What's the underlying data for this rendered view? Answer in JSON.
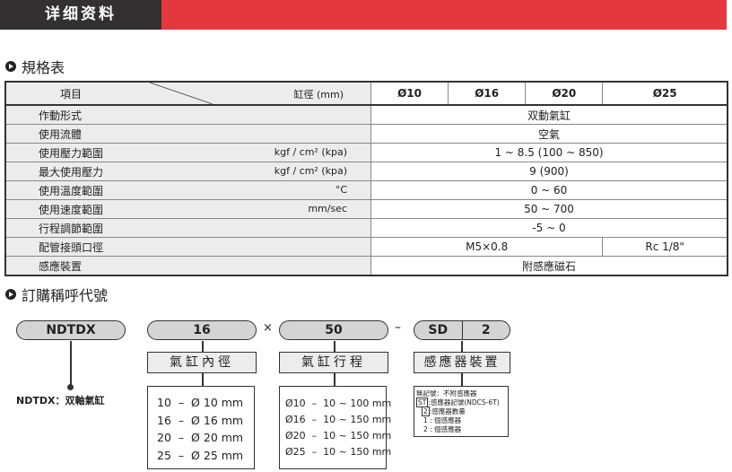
{
  "header": {
    "title": "详细资料"
  },
  "spec": {
    "section_title": "規格表",
    "header_item": "項目",
    "header_bore": "缸徑",
    "header_unit": "(mm)",
    "bores": [
      "Ø10",
      "Ø16",
      "Ø20",
      "Ø25"
    ],
    "rows": [
      {
        "label": "作動形式",
        "unit": "",
        "value": "双動氣缸"
      },
      {
        "label": "使用流體",
        "unit": "",
        "value": "空氣"
      },
      {
        "label": "使用壓力範圍",
        "unit": "kgf / cm² (kpa)",
        "value": "1 ~ 8.5 (100 ~ 850)"
      },
      {
        "label": "最大使用壓力",
        "unit": "kgf / cm² (kpa)",
        "value": "9 (900)"
      },
      {
        "label": "使用溫度範圍",
        "unit": "°C",
        "value": "0 ~ 60"
      },
      {
        "label": "使用速度範圍",
        "unit": "mm/sec",
        "value": "50 ~ 700"
      },
      {
        "label": "行程調節範圍",
        "unit": "",
        "value": "-5 ~ 0"
      },
      {
        "label": "配管接頭口徑",
        "unit": "",
        "value": "M5×0.8",
        "value2": "Rc 1/8\""
      },
      {
        "label": "感應裝置",
        "unit": "",
        "value": "附感應磁石"
      }
    ]
  },
  "order": {
    "section_title": "訂購稱呼代號",
    "model": "NDTDX",
    "bore": "16",
    "times": "×",
    "stroke": "50",
    "dash": "–",
    "sensor": "SD",
    "sensor_qty": "2",
    "model_note": "NDTDX：双軸氣缸",
    "bore_label": "氣缸內徑",
    "stroke_label": "氣缸行程",
    "sensor_label": "感應器裝置",
    "bore_options": [
      "10  –  Ø 10 mm",
      "16  –  Ø 16 mm",
      "20  –  Ø 20 mm",
      "25  –  Ø 25 mm"
    ],
    "stroke_options": [
      "Ø10  –  10 ~ 100 mm",
      "Ø16  –  10 ~ 150 mm",
      "Ø20  –  10 ~ 150 mm",
      "Ø25  –  10 ~ 150 mm"
    ],
    "sensor_notes": {
      "none": "無記號：不附感應器",
      "st_code": "ST",
      "st_text": ":感應器記號(NDCS-6T)",
      "qty_code": "2",
      "qty_text": ":感應器數量",
      "opt1": "1 : 個感應器",
      "opt2": "2 : 個感應器"
    }
  }
}
